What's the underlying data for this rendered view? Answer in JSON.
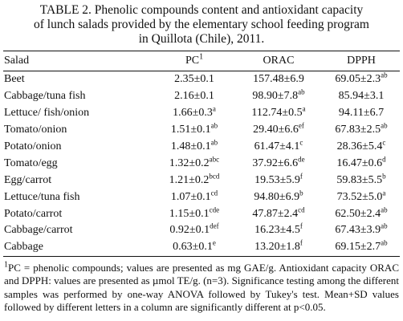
{
  "caption": {
    "lines": [
      "TABLE 2. Phenolic compounds content and antioxidant capacity",
      "of lunch salads provided by the elementary school feeding program",
      "in Quillota (Chile), 2011."
    ]
  },
  "table": {
    "headers": {
      "salad": "Salad",
      "pc": "PC",
      "pc_footnote_mark": "1",
      "orac": "ORAC",
      "dpph": "DPPH"
    },
    "rows": [
      {
        "salad": "Beet",
        "pc": {
          "v": "2.35±0.1",
          "s": ""
        },
        "orac": {
          "v": "157.48±6.9",
          "s": ""
        },
        "dpph": {
          "v": "69.05±2.3",
          "s": "ab"
        }
      },
      {
        "salad": "Cabbage/tuna fish",
        "pc": {
          "v": "2.16±0.1",
          "s": ""
        },
        "orac": {
          "v": "98.90±7.8",
          "s": "ab"
        },
        "dpph": {
          "v": "85.94±3.1",
          "s": ""
        }
      },
      {
        "salad": "Lettuce/ fish/onion",
        "pc": {
          "v": "1.66±0.3",
          "s": "a"
        },
        "orac": {
          "v": "112.74±0.5",
          "s": "a"
        },
        "dpph": {
          "v": "94.11±6.7",
          "s": ""
        }
      },
      {
        "salad": "Tomato/onion",
        "pc": {
          "v": "1.51±0.1",
          "s": "ab"
        },
        "orac": {
          "v": "29.40±6.6",
          "s": "ef"
        },
        "dpph": {
          "v": "67.83±2.5",
          "s": "ab"
        }
      },
      {
        "salad": "Potato/onion",
        "pc": {
          "v": "1.48±0.1",
          "s": "ab"
        },
        "orac": {
          "v": "61.47±4.1",
          "s": "c"
        },
        "dpph": {
          "v": "28.36±5.4",
          "s": "c"
        }
      },
      {
        "salad": "Tomato/egg",
        "pc": {
          "v": "1.32±0.2",
          "s": "abc"
        },
        "orac": {
          "v": "37.92±6.6",
          "s": "de"
        },
        "dpph": {
          "v": "16.47±0.6",
          "s": "d"
        }
      },
      {
        "salad": "Egg/carrot",
        "pc": {
          "v": "1.21±0.2",
          "s": "bcd"
        },
        "orac": {
          "v": "19.53±5.9",
          "s": "f"
        },
        "dpph": {
          "v": "59.83±5.5",
          "s": "b"
        }
      },
      {
        "salad": "Lettuce/tuna fish",
        "pc": {
          "v": "1.07±0.1",
          "s": "cd"
        },
        "orac": {
          "v": "94.80±6.9",
          "s": "b"
        },
        "dpph": {
          "v": "73.52±5.0",
          "s": "a"
        }
      },
      {
        "salad": "Potato/carrot",
        "pc": {
          "v": "1.15±0.1",
          "s": "cde"
        },
        "orac": {
          "v": "47.87±2.4",
          "s": "cd"
        },
        "dpph": {
          "v": "62.50±2.4",
          "s": "ab"
        }
      },
      {
        "salad": "Cabbage/carrot",
        "pc": {
          "v": "0.92±0.1",
          "s": "def"
        },
        "orac": {
          "v": "16.23±4.5",
          "s": "f"
        },
        "dpph": {
          "v": "67.43±3.9",
          "s": "ab"
        }
      },
      {
        "salad": "Cabbage",
        "pc": {
          "v": "0.63±0.1",
          "s": "e"
        },
        "orac": {
          "v": "13.20±1.8",
          "s": "f"
        },
        "dpph": {
          "v": "69.15±2.7",
          "s": "ab"
        }
      }
    ]
  },
  "footnote": {
    "mark": "1",
    "text": "PC = phenolic compounds; values are presented as mg GAE/g. Antioxidant capacity ORAC and DPPH: values are presented as µmol TE/g. (n=3). Significance testing among the different samples was performed by one-way ANOVA followed by Tukey's test. Mean+SD values followed by different letters in a column are significantly different at p<0.05."
  }
}
